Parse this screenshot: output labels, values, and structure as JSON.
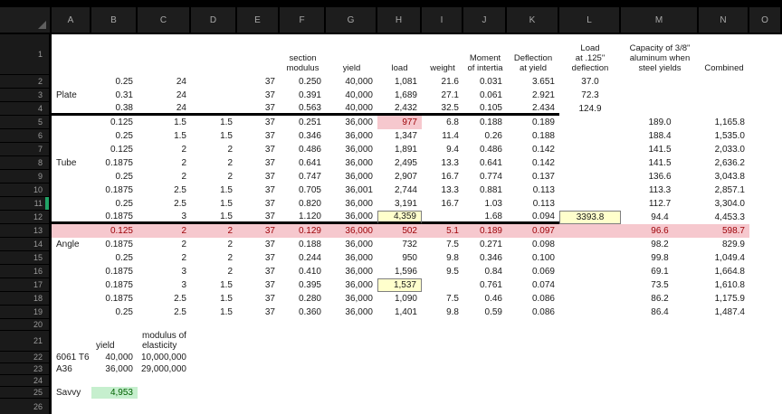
{
  "colors": {
    "background": "#000000",
    "header_cell_bg": "#1d1d1d",
    "header_text": "#a8a8a8",
    "sheet_bg": "#ffffff",
    "cell_text": "#1a1a1a",
    "bad_fill": "#f6c8ce",
    "bad_text": "#9c0006",
    "note_fill": "#ffffcc",
    "note_border": "#7f7f7f",
    "good_fill": "#c6efce",
    "good_text": "#006100",
    "selection_green": "#21a366"
  },
  "formatting": {
    "bad_rows": [
      13
    ],
    "bad_row_span": [
      "A",
      "N"
    ],
    "thick_bottom_rows": [
      4,
      12
    ],
    "thick_span": [
      "A",
      "K"
    ],
    "center_columns": [
      "L",
      "M"
    ],
    "selected_row_indicator": 11
  },
  "sheet": {
    "columns": [
      "A",
      "B",
      "C",
      "D",
      "E",
      "F",
      "G",
      "H",
      "I",
      "J",
      "K",
      "L",
      "M",
      "N",
      "O"
    ],
    "row_numbers": [
      "1",
      "2",
      "3",
      "4",
      "5",
      "6",
      "7",
      "8",
      "9",
      "10",
      "11",
      "12",
      "13",
      "14",
      "15",
      "16",
      "17",
      "18",
      "19",
      "20",
      "21",
      "22",
      "23",
      "24",
      "25",
      "26"
    ],
    "cells": [
      [
        1,
        "F",
        "section\nmodulus",
        "hdr"
      ],
      [
        1,
        "G",
        "yield",
        "hdr"
      ],
      [
        1,
        "H",
        "load",
        "hdr"
      ],
      [
        1,
        "I",
        "weight",
        "hdr"
      ],
      [
        1,
        "J",
        "Moment\nof intertia",
        "hdr"
      ],
      [
        1,
        "K",
        "Deflection\nat yield",
        "hdr"
      ],
      [
        1,
        "L",
        "Load\nat .125\"\ndeflection",
        "hdr"
      ],
      [
        1,
        "M",
        "Capacity of 3/8\"\naluminum when\nsteel yields",
        "hdr"
      ],
      [
        1,
        "N",
        "Combined",
        "hdr"
      ],
      [
        2,
        "B",
        "0.25"
      ],
      [
        2,
        "C",
        "24"
      ],
      [
        2,
        "E",
        "37"
      ],
      [
        2,
        "F",
        "0.250"
      ],
      [
        2,
        "G",
        "40,000"
      ],
      [
        2,
        "H",
        "1,081"
      ],
      [
        2,
        "I",
        "21.6"
      ],
      [
        2,
        "J",
        "0.031"
      ],
      [
        2,
        "K",
        "3.651"
      ],
      [
        2,
        "L",
        "37.0"
      ],
      [
        3,
        "A",
        "Plate",
        "l"
      ],
      [
        3,
        "B",
        "0.31"
      ],
      [
        3,
        "C",
        "24"
      ],
      [
        3,
        "E",
        "37"
      ],
      [
        3,
        "F",
        "0.391"
      ],
      [
        3,
        "G",
        "40,000"
      ],
      [
        3,
        "H",
        "1,689"
      ],
      [
        3,
        "I",
        "27.1"
      ],
      [
        3,
        "J",
        "0.061"
      ],
      [
        3,
        "K",
        "2.921"
      ],
      [
        3,
        "L",
        "72.3"
      ],
      [
        4,
        "B",
        "0.38"
      ],
      [
        4,
        "C",
        "24"
      ],
      [
        4,
        "E",
        "37"
      ],
      [
        4,
        "F",
        "0.563"
      ],
      [
        4,
        "G",
        "40,000"
      ],
      [
        4,
        "H",
        "2,432"
      ],
      [
        4,
        "I",
        "32.5"
      ],
      [
        4,
        "J",
        "0.105"
      ],
      [
        4,
        "K",
        "2.434"
      ],
      [
        4,
        "L",
        "124.9"
      ],
      [
        5,
        "B",
        "0.125"
      ],
      [
        5,
        "C",
        "1.5"
      ],
      [
        5,
        "D",
        "1.5"
      ],
      [
        5,
        "E",
        "37"
      ],
      [
        5,
        "F",
        "0.251"
      ],
      [
        5,
        "G",
        "36,000"
      ],
      [
        5,
        "H",
        "977",
        "bad"
      ],
      [
        5,
        "I",
        "6.8"
      ],
      [
        5,
        "J",
        "0.188"
      ],
      [
        5,
        "K",
        "0.189"
      ],
      [
        5,
        "M",
        "189.0"
      ],
      [
        5,
        "N",
        "1,165.8"
      ],
      [
        6,
        "B",
        "0.25"
      ],
      [
        6,
        "C",
        "1.5"
      ],
      [
        6,
        "D",
        "1.5"
      ],
      [
        6,
        "E",
        "37"
      ],
      [
        6,
        "F",
        "0.346"
      ],
      [
        6,
        "G",
        "36,000"
      ],
      [
        6,
        "H",
        "1,347"
      ],
      [
        6,
        "I",
        "11.4"
      ],
      [
        6,
        "J",
        "0.26"
      ],
      [
        6,
        "K",
        "0.188"
      ],
      [
        6,
        "M",
        "188.4"
      ],
      [
        6,
        "N",
        "1,535.0"
      ],
      [
        7,
        "B",
        "0.125"
      ],
      [
        7,
        "C",
        "2"
      ],
      [
        7,
        "D",
        "2"
      ],
      [
        7,
        "E",
        "37"
      ],
      [
        7,
        "F",
        "0.486"
      ],
      [
        7,
        "G",
        "36,000"
      ],
      [
        7,
        "H",
        "1,891"
      ],
      [
        7,
        "I",
        "9.4"
      ],
      [
        7,
        "J",
        "0.486"
      ],
      [
        7,
        "K",
        "0.142"
      ],
      [
        7,
        "M",
        "141.5"
      ],
      [
        7,
        "N",
        "2,033.0"
      ],
      [
        8,
        "A",
        "Tube",
        "l"
      ],
      [
        8,
        "B",
        "0.1875"
      ],
      [
        8,
        "C",
        "2"
      ],
      [
        8,
        "D",
        "2"
      ],
      [
        8,
        "E",
        "37"
      ],
      [
        8,
        "F",
        "0.641"
      ],
      [
        8,
        "G",
        "36,000"
      ],
      [
        8,
        "H",
        "2,495"
      ],
      [
        8,
        "I",
        "13.3"
      ],
      [
        8,
        "J",
        "0.641"
      ],
      [
        8,
        "K",
        "0.142"
      ],
      [
        8,
        "M",
        "141.5"
      ],
      [
        8,
        "N",
        "2,636.2"
      ],
      [
        9,
        "B",
        "0.25"
      ],
      [
        9,
        "C",
        "2"
      ],
      [
        9,
        "D",
        "2"
      ],
      [
        9,
        "E",
        "37"
      ],
      [
        9,
        "F",
        "0.747"
      ],
      [
        9,
        "G",
        "36,000"
      ],
      [
        9,
        "H",
        "2,907"
      ],
      [
        9,
        "I",
        "16.7"
      ],
      [
        9,
        "J",
        "0.774"
      ],
      [
        9,
        "K",
        "0.137"
      ],
      [
        9,
        "M",
        "136.6"
      ],
      [
        9,
        "N",
        "3,043.8"
      ],
      [
        10,
        "B",
        "0.1875"
      ],
      [
        10,
        "C",
        "2.5"
      ],
      [
        10,
        "D",
        "1.5"
      ],
      [
        10,
        "E",
        "37"
      ],
      [
        10,
        "F",
        "0.705"
      ],
      [
        10,
        "G",
        "36,001"
      ],
      [
        10,
        "H",
        "2,744"
      ],
      [
        10,
        "I",
        "13.3"
      ],
      [
        10,
        "J",
        "0.881"
      ],
      [
        10,
        "K",
        "0.113"
      ],
      [
        10,
        "M",
        "113.3"
      ],
      [
        10,
        "N",
        "2,857.1"
      ],
      [
        11,
        "B",
        "0.25"
      ],
      [
        11,
        "C",
        "2.5"
      ],
      [
        11,
        "D",
        "1.5"
      ],
      [
        11,
        "E",
        "37"
      ],
      [
        11,
        "F",
        "0.820"
      ],
      [
        11,
        "G",
        "36,000"
      ],
      [
        11,
        "H",
        "3,191"
      ],
      [
        11,
        "I",
        "16.7"
      ],
      [
        11,
        "J",
        "1.03"
      ],
      [
        11,
        "K",
        "0.113"
      ],
      [
        11,
        "M",
        "112.7"
      ],
      [
        11,
        "N",
        "3,304.0"
      ],
      [
        12,
        "B",
        "0.1875"
      ],
      [
        12,
        "C",
        "3"
      ],
      [
        12,
        "D",
        "1.5"
      ],
      [
        12,
        "E",
        "37"
      ],
      [
        12,
        "F",
        "1.120"
      ],
      [
        12,
        "G",
        "36,000"
      ],
      [
        12,
        "H",
        "4,359",
        "note"
      ],
      [
        12,
        "J",
        "1.68"
      ],
      [
        12,
        "K",
        "0.094"
      ],
      [
        12,
        "L",
        "3393.8",
        "note"
      ],
      [
        12,
        "M",
        "94.4"
      ],
      [
        12,
        "N",
        "4,453.3"
      ],
      [
        13,
        "B",
        "0.125"
      ],
      [
        13,
        "C",
        "2"
      ],
      [
        13,
        "D",
        "2"
      ],
      [
        13,
        "E",
        "37"
      ],
      [
        13,
        "F",
        "0.129"
      ],
      [
        13,
        "G",
        "36,000"
      ],
      [
        13,
        "H",
        "502"
      ],
      [
        13,
        "I",
        "5.1"
      ],
      [
        13,
        "J",
        "0.189"
      ],
      [
        13,
        "K",
        "0.097"
      ],
      [
        13,
        "M",
        "96.6"
      ],
      [
        13,
        "N",
        "598.7"
      ],
      [
        14,
        "A",
        "Angle",
        "l"
      ],
      [
        14,
        "B",
        "0.1875"
      ],
      [
        14,
        "C",
        "2"
      ],
      [
        14,
        "D",
        "2"
      ],
      [
        14,
        "E",
        "37"
      ],
      [
        14,
        "F",
        "0.188"
      ],
      [
        14,
        "G",
        "36,000"
      ],
      [
        14,
        "H",
        "732"
      ],
      [
        14,
        "I",
        "7.5"
      ],
      [
        14,
        "J",
        "0.271"
      ],
      [
        14,
        "K",
        "0.098"
      ],
      [
        14,
        "M",
        "98.2"
      ],
      [
        14,
        "N",
        "829.9"
      ],
      [
        15,
        "B",
        "0.25"
      ],
      [
        15,
        "C",
        "2"
      ],
      [
        15,
        "D",
        "2"
      ],
      [
        15,
        "E",
        "37"
      ],
      [
        15,
        "F",
        "0.244"
      ],
      [
        15,
        "G",
        "36,000"
      ],
      [
        15,
        "H",
        "950"
      ],
      [
        15,
        "I",
        "9.8"
      ],
      [
        15,
        "J",
        "0.346"
      ],
      [
        15,
        "K",
        "0.100"
      ],
      [
        15,
        "M",
        "99.8"
      ],
      [
        15,
        "N",
        "1,049.4"
      ],
      [
        16,
        "B",
        "0.1875"
      ],
      [
        16,
        "C",
        "3"
      ],
      [
        16,
        "D",
        "2"
      ],
      [
        16,
        "E",
        "37"
      ],
      [
        16,
        "F",
        "0.410"
      ],
      [
        16,
        "G",
        "36,000"
      ],
      [
        16,
        "H",
        "1,596"
      ],
      [
        16,
        "I",
        "9.5"
      ],
      [
        16,
        "J",
        "0.84"
      ],
      [
        16,
        "K",
        "0.069"
      ],
      [
        16,
        "M",
        "69.1"
      ],
      [
        16,
        "N",
        "1,664.8"
      ],
      [
        17,
        "B",
        "0.1875"
      ],
      [
        17,
        "C",
        "3"
      ],
      [
        17,
        "D",
        "1.5"
      ],
      [
        17,
        "E",
        "37"
      ],
      [
        17,
        "F",
        "0.395"
      ],
      [
        17,
        "G",
        "36,000"
      ],
      [
        17,
        "H",
        "1,537",
        "note"
      ],
      [
        17,
        "J",
        "0.761"
      ],
      [
        17,
        "K",
        "0.074"
      ],
      [
        17,
        "M",
        "73.5"
      ],
      [
        17,
        "N",
        "1,610.8"
      ],
      [
        18,
        "B",
        "0.1875"
      ],
      [
        18,
        "C",
        "2.5"
      ],
      [
        18,
        "D",
        "1.5"
      ],
      [
        18,
        "E",
        "37"
      ],
      [
        18,
        "F",
        "0.280"
      ],
      [
        18,
        "G",
        "36,000"
      ],
      [
        18,
        "H",
        "1,090"
      ],
      [
        18,
        "I",
        "7.5"
      ],
      [
        18,
        "J",
        "0.46"
      ],
      [
        18,
        "K",
        "0.086"
      ],
      [
        18,
        "M",
        "86.2"
      ],
      [
        18,
        "N",
        "1,175.9"
      ],
      [
        19,
        "B",
        "0.25"
      ],
      [
        19,
        "C",
        "2.5"
      ],
      [
        19,
        "D",
        "1.5"
      ],
      [
        19,
        "E",
        "37"
      ],
      [
        19,
        "F",
        "0.360"
      ],
      [
        19,
        "G",
        "36,000"
      ],
      [
        19,
        "H",
        "1,401"
      ],
      [
        19,
        "I",
        "9.8"
      ],
      [
        19,
        "J",
        "0.59"
      ],
      [
        19,
        "K",
        "0.086"
      ],
      [
        19,
        "M",
        "86.4"
      ],
      [
        19,
        "N",
        "1,487.4"
      ],
      [
        21,
        "B",
        "yield",
        "lbl"
      ],
      [
        21,
        "C",
        "modulus of\nelasticity",
        "lbl"
      ],
      [
        22,
        "A",
        "6061 T6",
        "l"
      ],
      [
        22,
        "B",
        "40,000"
      ],
      [
        22,
        "C",
        "10,000,000"
      ],
      [
        23,
        "A",
        "A36",
        "l"
      ],
      [
        23,
        "B",
        "36,000"
      ],
      [
        23,
        "C",
        "29,000,000"
      ],
      [
        25,
        "A",
        "Savvy",
        "l"
      ],
      [
        25,
        "B",
        "4,953",
        "good"
      ]
    ]
  }
}
